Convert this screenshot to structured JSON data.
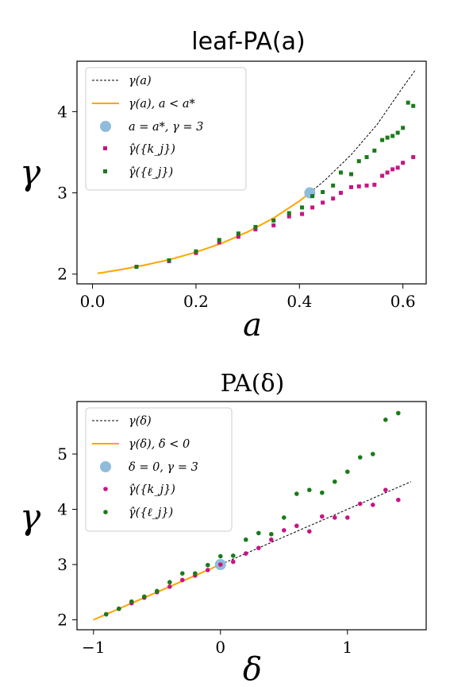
{
  "chart_data": [
    {
      "type": "line",
      "title": "leaf-PA(a)",
      "xlabel": "a",
      "ylabel": "γ",
      "xlim": [
        -0.03,
        0.645
      ],
      "ylim": [
        1.88,
        4.62
      ],
      "xticks": [
        0.0,
        0.2,
        0.4,
        0.6
      ],
      "xtick_labels": [
        "0.0",
        "0.2",
        "0.4",
        "0.6"
      ],
      "yticks": [
        2,
        3,
        4
      ],
      "ytick_labels": [
        "2",
        "3",
        "4"
      ],
      "legend_position": "upper-left",
      "colors": {
        "dashed": "#000000",
        "orange": "#ffa500",
        "star": "#8fbcdb",
        "kj": "#c71585",
        "lj": "#1a7a1a"
      },
      "series": [
        {
          "name": "γ(a)",
          "style": "dashed",
          "x": [
            0.01,
            0.05,
            0.1,
            0.15,
            0.2,
            0.25,
            0.3,
            0.35,
            0.4,
            0.42,
            0.45,
            0.5,
            0.55,
            0.6,
            0.625
          ],
          "y": [
            2.01,
            2.05,
            2.11,
            2.18,
            2.27,
            2.38,
            2.52,
            2.69,
            2.9,
            3.0,
            3.16,
            3.47,
            3.84,
            4.3,
            4.52
          ]
        },
        {
          "name": "γ(a), a < a*",
          "style": "solid",
          "x": [
            0.01,
            0.05,
            0.1,
            0.15,
            0.2,
            0.25,
            0.3,
            0.35,
            0.4,
            0.42
          ],
          "y": [
            2.01,
            2.05,
            2.11,
            2.18,
            2.27,
            2.38,
            2.52,
            2.69,
            2.9,
            3.0
          ]
        },
        {
          "name": "a = a*, γ = 3",
          "style": "big-dot",
          "x": [
            0.42
          ],
          "y": [
            3.0
          ]
        },
        {
          "name": "γ̂({k_j})",
          "style": "square",
          "x": [
            0.085,
            0.148,
            0.2,
            0.245,
            0.282,
            0.315,
            0.35,
            0.38,
            0.405,
            0.425,
            0.445,
            0.465,
            0.48,
            0.5,
            0.515,
            0.53,
            0.545,
            0.56,
            0.57,
            0.58,
            0.59,
            0.6,
            0.62
          ],
          "y": [
            2.09,
            2.16,
            2.26,
            2.39,
            2.46,
            2.55,
            2.6,
            2.71,
            2.74,
            2.82,
            2.88,
            2.93,
            3.0,
            3.07,
            3.08,
            3.09,
            3.1,
            3.21,
            3.25,
            3.29,
            3.31,
            3.37,
            3.44
          ]
        },
        {
          "name": "γ̂({ℓ_j})",
          "style": "square",
          "x": [
            0.085,
            0.148,
            0.2,
            0.245,
            0.282,
            0.315,
            0.35,
            0.38,
            0.405,
            0.425,
            0.445,
            0.465,
            0.48,
            0.5,
            0.515,
            0.53,
            0.545,
            0.56,
            0.57,
            0.58,
            0.59,
            0.6,
            0.61,
            0.62
          ],
          "y": [
            2.09,
            2.17,
            2.28,
            2.42,
            2.5,
            2.58,
            2.66,
            2.75,
            2.82,
            2.96,
            3.01,
            3.09,
            3.25,
            3.23,
            3.39,
            3.44,
            3.52,
            3.65,
            3.68,
            3.7,
            3.74,
            3.8,
            4.11,
            4.07
          ]
        }
      ]
    },
    {
      "type": "line",
      "title": "PA(δ)",
      "xlabel": "δ",
      "ylabel": "γ",
      "xlim": [
        -1.13,
        1.62
      ],
      "ylim": [
        1.82,
        5.95
      ],
      "xticks": [
        -1,
        0,
        1
      ],
      "xtick_labels": [
        "−1",
        "0",
        "1"
      ],
      "yticks": [
        2,
        3,
        4,
        5
      ],
      "ytick_labels": [
        "2",
        "3",
        "4",
        "5"
      ],
      "legend_position": "upper-left",
      "colors": {
        "dashed": "#000000",
        "orange": "#ffa500",
        "star": "#8fbcdb",
        "kj": "#c71585",
        "lj": "#1a7a1a"
      },
      "series": [
        {
          "name": "γ(δ)",
          "style": "dashed",
          "x": [
            -1.0,
            1.5
          ],
          "y": [
            2.0,
            4.5
          ]
        },
        {
          "name": "γ(δ), δ < 0",
          "style": "solid",
          "x": [
            -1.0,
            0.0
          ],
          "y": [
            2.0,
            3.0
          ]
        },
        {
          "name": "δ = 0, γ = 3",
          "style": "big-dot",
          "x": [
            0.0
          ],
          "y": [
            3.0
          ]
        },
        {
          "name": "γ̂({k_j})",
          "style": "dot",
          "x": [
            -0.9,
            -0.8,
            -0.7,
            -0.6,
            -0.5,
            -0.4,
            -0.3,
            -0.2,
            -0.1,
            0.0,
            0.1,
            0.2,
            0.3,
            0.4,
            0.5,
            0.6,
            0.7,
            0.8,
            0.9,
            1.0,
            1.1,
            1.2,
            1.3,
            1.4
          ],
          "y": [
            2.1,
            2.2,
            2.3,
            2.4,
            2.5,
            2.6,
            2.72,
            2.8,
            2.9,
            3.0,
            3.05,
            3.2,
            3.3,
            3.45,
            3.62,
            3.7,
            3.6,
            3.87,
            3.85,
            3.85,
            4.1,
            4.08,
            4.35,
            4.17
          ]
        },
        {
          "name": "γ̂({ℓ_j})",
          "style": "dot",
          "x": [
            -0.9,
            -0.8,
            -0.7,
            -0.6,
            -0.5,
            -0.4,
            -0.3,
            -0.2,
            -0.1,
            0.0,
            0.1,
            0.2,
            0.3,
            0.4,
            0.5,
            0.6,
            0.7,
            0.8,
            0.9,
            1.0,
            1.1,
            1.2,
            1.3,
            1.4
          ],
          "y": [
            2.1,
            2.2,
            2.33,
            2.42,
            2.52,
            2.68,
            2.84,
            2.84,
            2.99,
            3.15,
            3.16,
            3.45,
            3.57,
            3.55,
            3.85,
            4.28,
            4.35,
            4.3,
            4.5,
            4.68,
            4.94,
            5.0,
            5.62,
            5.74
          ]
        }
      ]
    }
  ]
}
